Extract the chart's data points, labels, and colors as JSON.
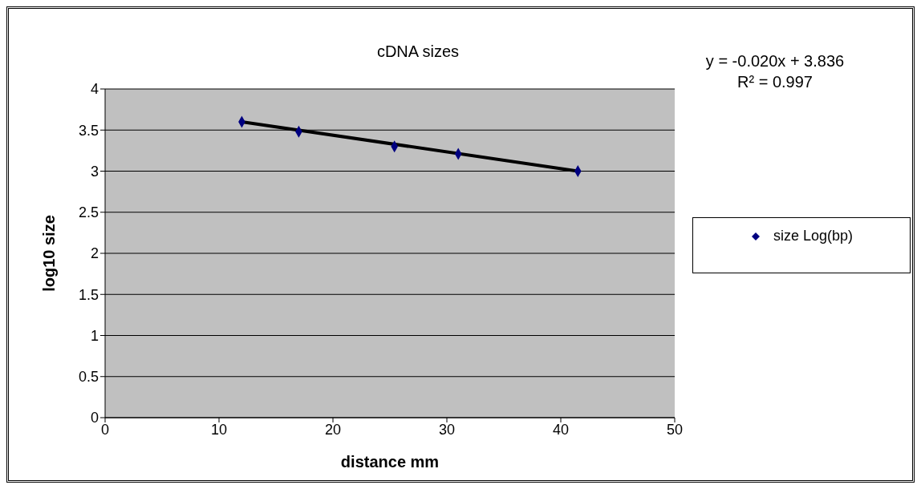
{
  "chart_data": {
    "type": "scatter",
    "title": "cDNA sizes",
    "xlabel": "distance mm",
    "ylabel": "log10 size",
    "annotations": [
      "y = -0.020x + 3.836",
      "R² = 0.997"
    ],
    "series": [
      {
        "name": "size Log(bp)",
        "color": "#000080",
        "x": [
          12,
          17,
          25.4,
          31,
          41.5
        ],
        "values": [
          3.6,
          3.48,
          3.3,
          3.21,
          3.0
        ],
        "marker": "diamond"
      },
      {
        "type": "line",
        "color": "#000000",
        "x": [
          12,
          41.5
        ],
        "values": [
          3.6,
          3.0
        ],
        "marker": "none"
      }
    ],
    "xlim": [
      0,
      50
    ],
    "xticks": [
      0,
      10,
      20,
      30,
      40,
      50
    ],
    "ylim": [
      0,
      4
    ],
    "yticks": [
      0,
      0.5,
      1,
      1.5,
      2,
      2.5,
      3,
      3.5,
      4
    ],
    "grid": "y",
    "legend": "right"
  }
}
